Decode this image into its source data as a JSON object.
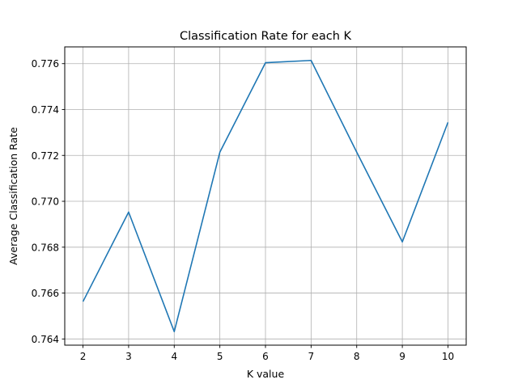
{
  "chart_data": {
    "type": "line",
    "title": "Classification Rate for each K",
    "xlabel": "K value",
    "ylabel": "Average Classification Rate",
    "x": [
      2,
      3,
      4,
      5,
      6,
      7,
      8,
      9,
      10
    ],
    "series": [
      {
        "values": [
          0.76563,
          0.76953,
          0.76432,
          0.77214,
          0.77604,
          0.77614,
          0.77214,
          0.76823,
          0.77344
        ],
        "color": "#1f77b4"
      }
    ],
    "xticks": [
      2,
      3,
      4,
      5,
      6,
      7,
      8,
      9,
      10
    ],
    "yticks": [
      0.764,
      0.766,
      0.768,
      0.77,
      0.772,
      0.774,
      0.776
    ],
    "ytick_labels": [
      "0.764",
      "0.766",
      "0.768",
      "0.770",
      "0.772",
      "0.774",
      "0.776"
    ],
    "xlim": [
      1.6,
      10.4
    ],
    "ylim": [
      0.76373,
      0.77673
    ],
    "grid": true
  }
}
